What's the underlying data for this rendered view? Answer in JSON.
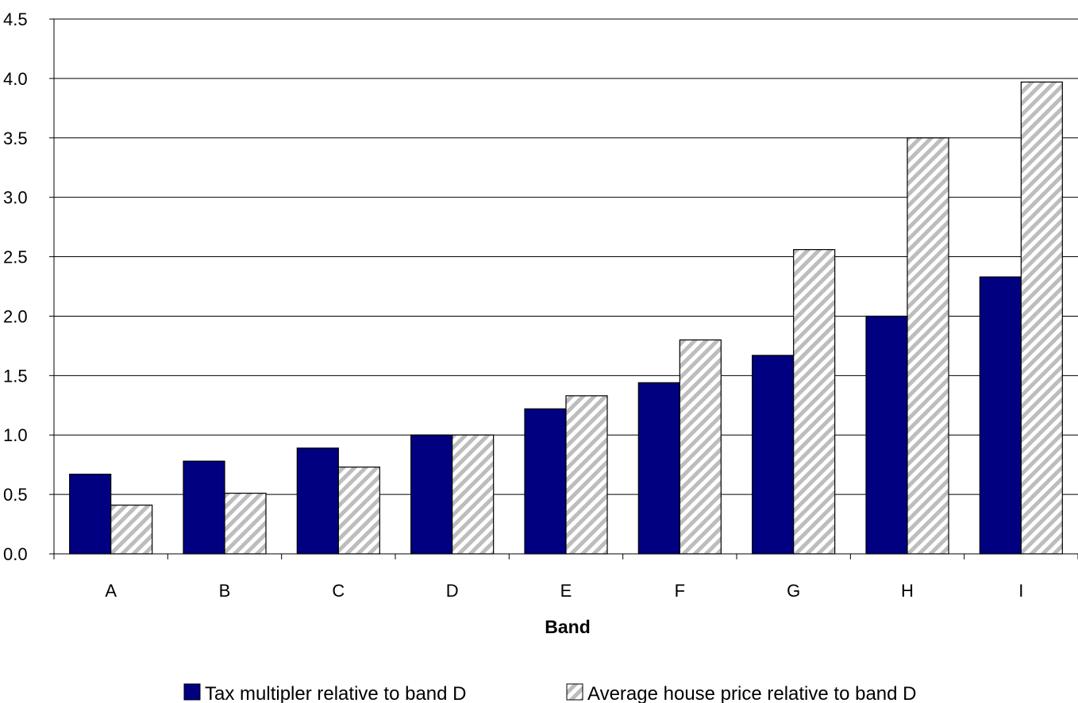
{
  "chart_data": {
    "type": "bar",
    "title": "",
    "xlabel": "Band",
    "ylabel": "",
    "ylim": [
      0,
      4.5
    ],
    "yticks": [
      "0.0",
      "0.5",
      "1.0",
      "1.5",
      "2.0",
      "2.5",
      "3.0",
      "3.5",
      "4.0",
      "4.5"
    ],
    "grid": true,
    "legend_position": "bottom",
    "categories": [
      "A",
      "B",
      "C",
      "D",
      "E",
      "F",
      "G",
      "H",
      "I"
    ],
    "series": [
      {
        "name": "Tax multipler relative to band D",
        "color": "#000080",
        "values": [
          0.67,
          0.78,
          0.89,
          1.0,
          1.22,
          1.44,
          1.67,
          2.0,
          2.33
        ]
      },
      {
        "name": "Average house price relative to band D",
        "color": "#c0c0c0",
        "pattern": "diagonal-hatch",
        "values": [
          0.41,
          0.51,
          0.73,
          1.0,
          1.33,
          1.8,
          2.56,
          3.5,
          3.97
        ]
      }
    ]
  }
}
